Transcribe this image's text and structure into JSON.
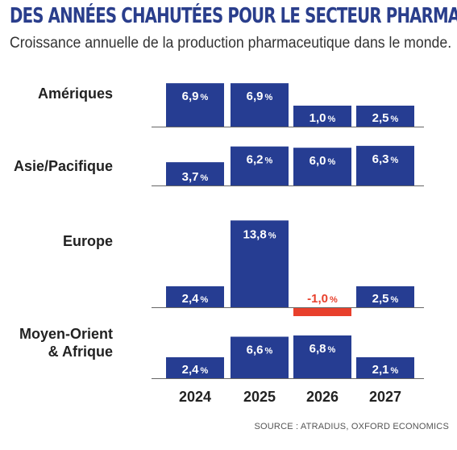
{
  "chart_data": {
    "type": "bar",
    "title": "DES ANNÉES CHAHUTÉES POUR LE SECTEUR PHARMA",
    "subtitle": "Croissance annuelle de la production pharmaceutique dans le monde.",
    "source": "SOURCE : ATRADIUS, OXFORD ECONOMICS",
    "categories": [
      "2024",
      "2025",
      "2026",
      "2027"
    ],
    "unit": "%",
    "series": [
      {
        "name": "Amériques",
        "values": [
          6.9,
          6.9,
          1.0,
          2.5
        ],
        "labels": [
          "6,9",
          "6,9",
          "1,0",
          "2,5"
        ]
      },
      {
        "name": "Asie/Pacifique",
        "values": [
          3.7,
          6.2,
          6.0,
          6.3
        ],
        "labels": [
          "3,7",
          "6,2",
          "6,0",
          "6,3"
        ]
      },
      {
        "name": "Europe",
        "values": [
          2.4,
          13.8,
          -1.0,
          2.5
        ],
        "labels": [
          "2,4",
          "13,8",
          "-1,0",
          "2,5"
        ]
      },
      {
        "name": "Moyen-Orient\n& Afrique",
        "values": [
          2.4,
          6.6,
          6.8,
          2.1
        ],
        "labels": [
          "2,4",
          "6,6",
          "6,8",
          "2,1"
        ]
      }
    ],
    "colors": {
      "positive": "#263d92",
      "negative": "#e8402c",
      "baseline": "#666666"
    }
  }
}
